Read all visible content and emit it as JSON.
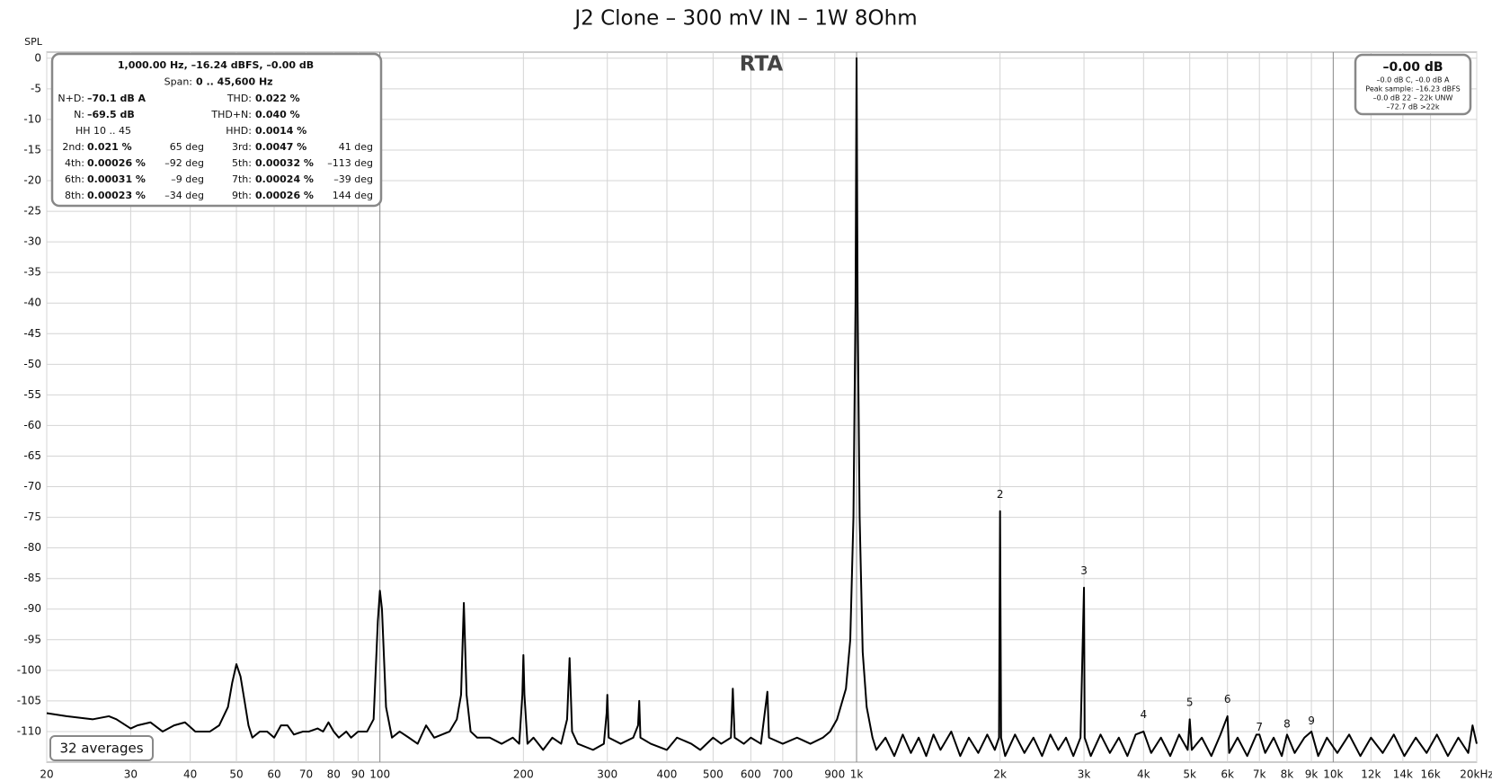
{
  "chart_data": {
    "type": "line",
    "title": "J2 Clone – 300 mV IN – 1W 8Ohm",
    "y_label": "SPL",
    "plot_label": "RTA",
    "averages": "32 averages",
    "log_x": true,
    "grid": true,
    "color": "#000000",
    "xlim": [
      20,
      20000
    ],
    "ylim": [
      -115,
      1
    ],
    "xticks": [
      20,
      30,
      40,
      50,
      60,
      70,
      80,
      90,
      100,
      200,
      300,
      400,
      500,
      600,
      700,
      900,
      {
        "value": 1000,
        "label": "1k"
      },
      {
        "value": 2000,
        "label": "2k"
      },
      {
        "value": 3000,
        "label": "3k"
      },
      {
        "value": 4000,
        "label": "4k"
      },
      {
        "value": 5000,
        "label": "5k"
      },
      {
        "value": 6000,
        "label": "6k"
      },
      {
        "value": 7000,
        "label": "7k"
      },
      {
        "value": 8000,
        "label": "8k"
      },
      {
        "value": 9000,
        "label": "9k"
      },
      {
        "value": 10000,
        "label": "10k"
      },
      {
        "value": 12000,
        "label": "12k"
      },
      {
        "value": 14000,
        "label": "14k"
      },
      {
        "value": 16000,
        "label": "16k"
      },
      {
        "value": 20000,
        "label": "20kHz"
      }
    ],
    "yticks": [
      0,
      -5,
      -10,
      -15,
      -20,
      -25,
      -30,
      -35,
      -40,
      -45,
      -50,
      -55,
      -60,
      -65,
      -70,
      -75,
      -80,
      -85,
      -90,
      -95,
      -100,
      -105,
      -110
    ],
    "x": [
      20,
      22,
      25,
      27,
      28,
      30,
      31,
      33,
      35,
      37,
      39,
      41,
      44,
      46,
      48,
      49,
      50,
      51,
      52,
      53,
      54,
      56,
      58,
      60,
      62,
      64,
      66,
      69,
      71,
      74,
      76,
      78,
      80,
      82,
      85,
      87,
      90,
      94,
      97,
      99,
      100,
      101,
      103,
      106,
      110,
      115,
      120,
      125,
      130,
      140,
      145,
      148,
      150,
      152,
      155,
      160,
      170,
      180,
      190,
      196,
      199,
      200,
      201,
      204,
      210,
      220,
      230,
      240,
      247,
      250,
      253,
      260,
      280,
      295,
      299,
      300,
      302,
      320,
      340,
      348,
      350,
      352,
      370,
      400,
      420,
      450,
      470,
      500,
      520,
      545,
      550,
      555,
      580,
      600,
      630,
      650,
      655,
      700,
      750,
      800,
      850,
      880,
      910,
      950,
      970,
      985,
      995,
      1000,
      1005,
      1015,
      1030,
      1050,
      1080,
      1100,
      1150,
      1200,
      1250,
      1300,
      1350,
      1400,
      1450,
      1500,
      1580,
      1650,
      1720,
      1800,
      1880,
      1950,
      1990,
      2000,
      2010,
      2050,
      2150,
      2250,
      2350,
      2450,
      2550,
      2650,
      2750,
      2850,
      2950,
      3000,
      3010,
      3100,
      3250,
      3400,
      3550,
      3700,
      3850,
      4000,
      4150,
      4350,
      4550,
      4750,
      4950,
      5000,
      5050,
      5300,
      5550,
      5800,
      6000,
      6050,
      6300,
      6600,
      6900,
      7000,
      7200,
      7500,
      7800,
      8000,
      8300,
      8700,
      9000,
      9300,
      9700,
      10200,
      10800,
      11400,
      12000,
      12700,
      13400,
      14100,
      14900,
      15700,
      16500,
      17400,
      18300,
      19200,
      19600,
      20000
    ],
    "values": [
      -107,
      -107.5,
      -108,
      -107.5,
      -108,
      -109.5,
      -109,
      -108.5,
      -110,
      -109,
      -108.5,
      -110,
      -110,
      -109,
      -106,
      -102,
      -99,
      -101,
      -105,
      -109,
      -111,
      -110,
      -110,
      -111,
      -109,
      -109,
      -110.5,
      -110,
      -110,
      -109.5,
      -110,
      -108.5,
      -110,
      -111,
      -110,
      -111,
      -110,
      -110,
      -108,
      -92,
      -87,
      -90,
      -106,
      -111,
      -110,
      -111,
      -112,
      -109,
      -111,
      -110,
      -108,
      -104,
      -89,
      -104,
      -110,
      -111,
      -111,
      -112,
      -111,
      -112,
      -104,
      -97.5,
      -104,
      -112,
      -111,
      -113,
      -111,
      -112,
      -108,
      -98,
      -110,
      -112,
      -113,
      -112,
      -107,
      -104,
      -111,
      -112,
      -111,
      -109,
      -105,
      -111,
      -112,
      -113,
      -111,
      -112,
      -113,
      -111,
      -112,
      -111,
      -103,
      -111,
      -112,
      -111,
      -112,
      -103.5,
      -111,
      -112,
      -111,
      -112,
      -111,
      -110,
      -108,
      -103,
      -95,
      -75,
      -40,
      0,
      -40,
      -75,
      -97,
      -106,
      -111,
      -113,
      -111,
      -114,
      -110.5,
      -113.5,
      -111,
      -114,
      -110.5,
      -113,
      -110,
      -114,
      -111,
      -113.5,
      -110.5,
      -113,
      -111,
      -74,
      -111,
      -114,
      -110.5,
      -113.5,
      -111,
      -114,
      -110.5,
      -113,
      -111,
      -114,
      -111,
      -86.5,
      -111,
      -114,
      -110.5,
      -113.5,
      -111,
      -114,
      -110.5,
      -110,
      -113.5,
      -111,
      -114,
      -110.5,
      -113,
      -108,
      -113,
      -111,
      -114,
      -110.5,
      -107.5,
      -113.5,
      -111,
      -114,
      -110.5,
      -110.5,
      -113.5,
      -111,
      -114,
      -110.5,
      -113.5,
      -111,
      -110,
      -114,
      -111,
      -113.5,
      -110.5,
      -114,
      -111,
      -113.5,
      -110.5,
      -114,
      -111,
      -113.5,
      -110.5,
      -114,
      -111,
      -113.5,
      -109,
      -112
    ],
    "harmonic_labels": [
      {
        "text": "2",
        "x": 2000,
        "y": -72.5
      },
      {
        "text": "3",
        "x": 3000,
        "y": -85
      },
      {
        "text": "4",
        "x": 4000,
        "y": -108.5
      },
      {
        "text": "5",
        "x": 5000,
        "y": -106.5
      },
      {
        "text": "6",
        "x": 6000,
        "y": -106
      },
      {
        "text": "7",
        "x": 7000,
        "y": -110.5
      },
      {
        "text": "8",
        "x": 8000,
        "y": -110
      },
      {
        "text": "9",
        "x": 9000,
        "y": -109.5
      }
    ],
    "info_panel": {
      "header": "1,000.00 Hz, –16.24 dBFS, –0.00 dB",
      "span_label": "Span:",
      "span": "0 .. 45,600 Hz",
      "rows": [
        {
          "l1": "N+D:",
          "v1": "–70.1 dB A",
          "l2": "THD:",
          "v2": "0.022 %"
        },
        {
          "l1": "N:",
          "v1": "–69.5 dB",
          "l2": "THD+N:",
          "v2": "0.040 %"
        },
        {
          "t1": "HH 10 .. 45",
          "l2": "HHD:",
          "v2": "0.0014 %"
        },
        {
          "l1": "2nd:",
          "v1": "0.021 %",
          "d1": "65 deg",
          "l2": "3rd:",
          "v2": "0.0047 %",
          "d2": "41 deg"
        },
        {
          "l1": "4th:",
          "v1": "0.00026 %",
          "d1": "–92 deg",
          "l2": "5th:",
          "v2": "0.00032 %",
          "d2": "–113 deg"
        },
        {
          "l1": "6th:",
          "v1": "0.00031 %",
          "d1": "–9 deg",
          "l2": "7th:",
          "v2": "0.00024 %",
          "d2": "–39 deg"
        },
        {
          "l1": "8th:",
          "v1": "0.00023 %",
          "d1": "–34 deg",
          "l2": "9th:",
          "v2": "0.00026 %",
          "d2": "144 deg"
        }
      ]
    },
    "level_panel": {
      "level": "–0.00 dB",
      "lines": [
        "–0.0 dB C, –0.0 dB A",
        "Peak sample: –16.23 dBFS",
        "–0.0 dB 22 – 22k UNW",
        "–72.7 dB >22k"
      ]
    }
  }
}
